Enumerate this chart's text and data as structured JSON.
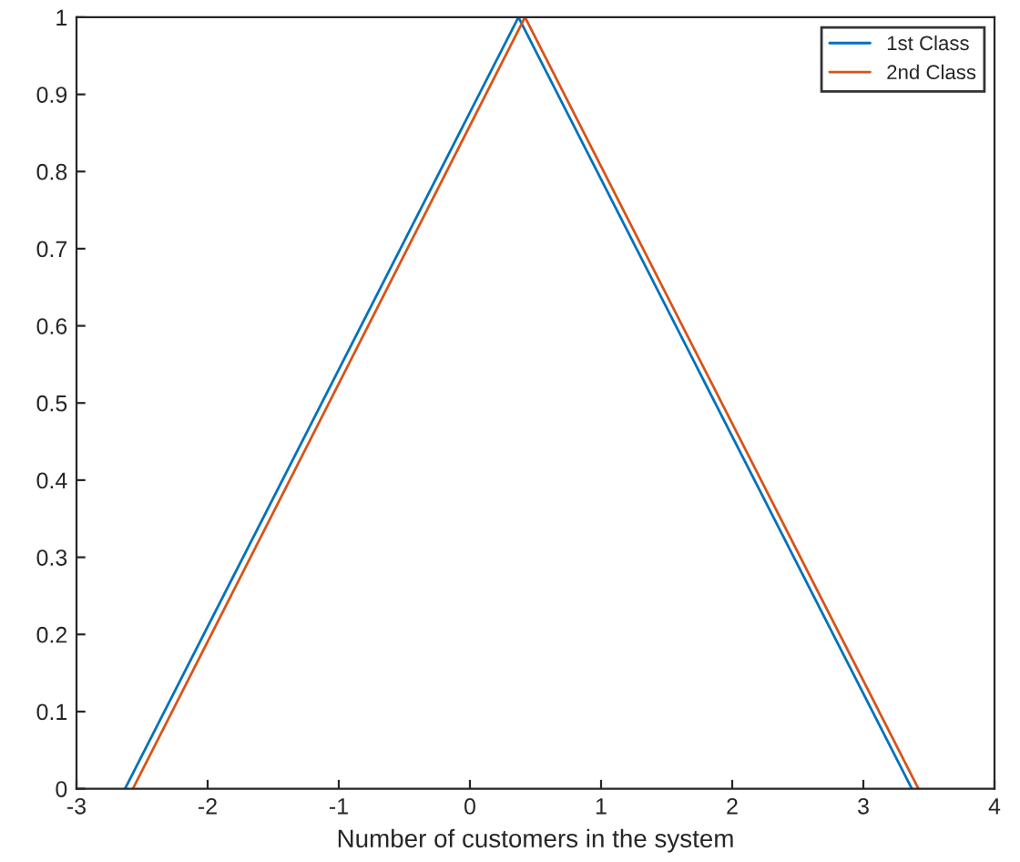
{
  "chart_data": {
    "type": "line",
    "xlabel": "Number of customers in the system",
    "xlim": [
      -3,
      4
    ],
    "xticks": [
      -3,
      -2,
      -1,
      0,
      1,
      2,
      3,
      4
    ],
    "ylim": [
      0,
      1
    ],
    "yticks": [
      0,
      0.1,
      0.2,
      0.3,
      0.4,
      0.5,
      0.6,
      0.7,
      0.8,
      0.9,
      1
    ],
    "legend": "top right",
    "grid": false,
    "series": [
      {
        "name": "1st Class",
        "color": "#0072bd",
        "x": [
          -2.63,
          0.37,
          3.37
        ],
        "values": [
          0,
          1,
          0
        ]
      },
      {
        "name": "2nd Class",
        "color": "#d95319",
        "x": [
          -2.57,
          0.42,
          3.42
        ],
        "values": [
          0,
          1,
          0
        ]
      }
    ]
  }
}
